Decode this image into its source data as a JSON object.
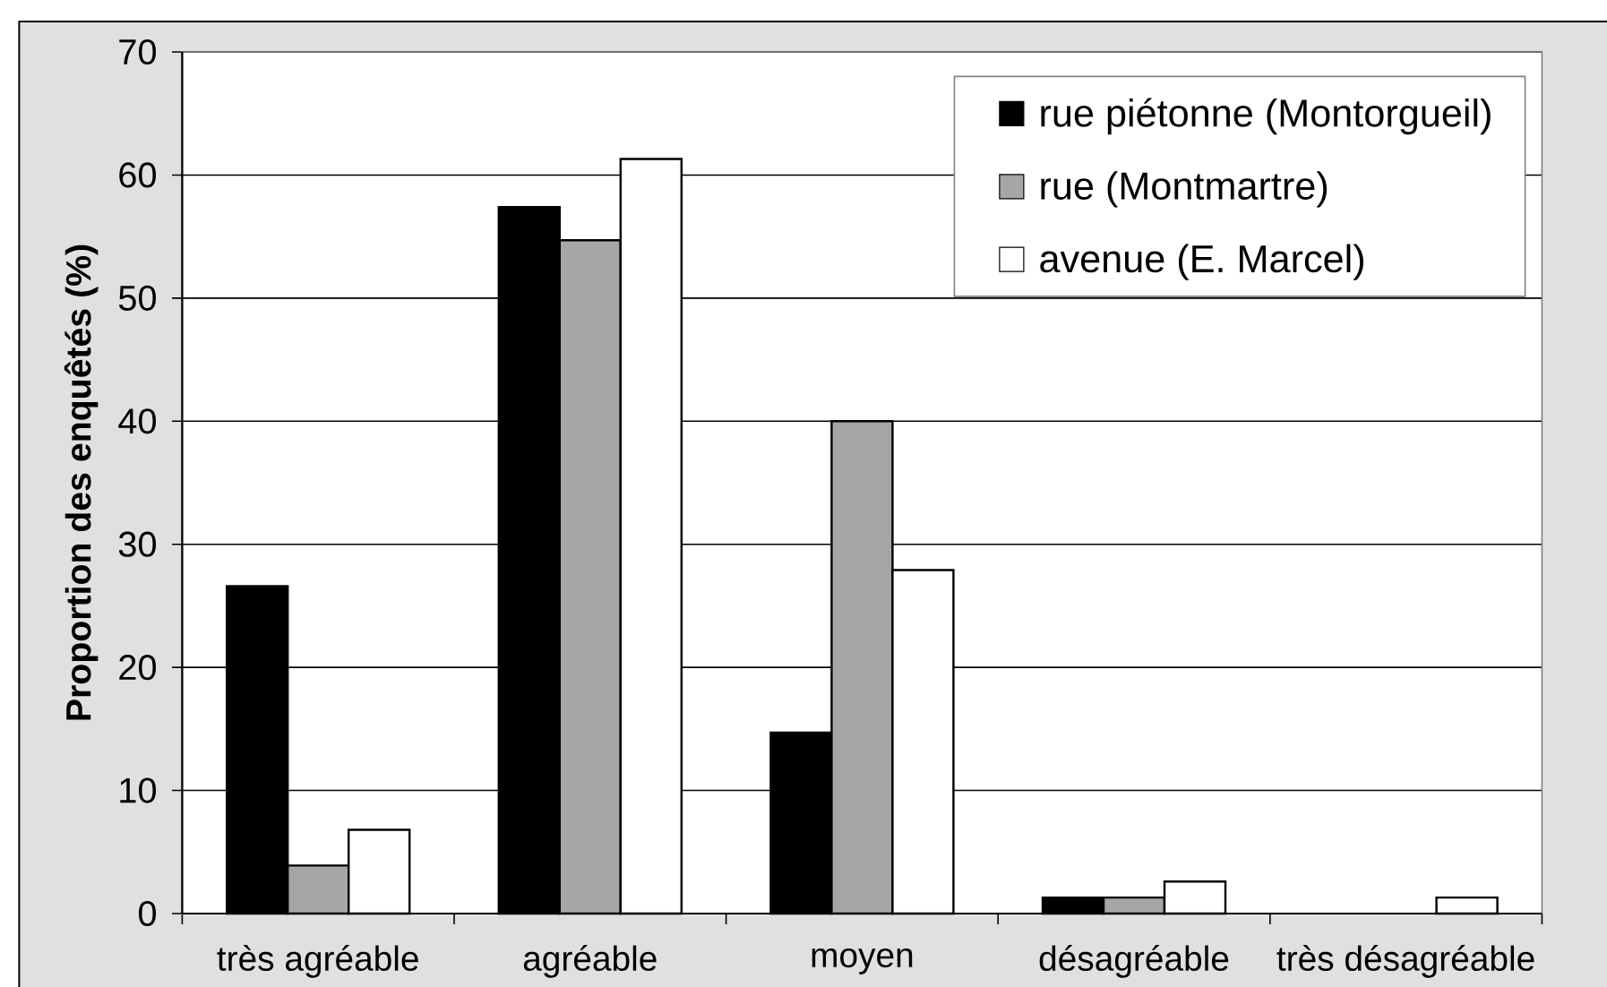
{
  "chart_data": {
    "type": "bar",
    "ylabel": "Proportion des enquêtés (%)",
    "categories": [
      "très agréable",
      "agréable",
      "moyen",
      "désagréable",
      "très désagréable"
    ],
    "series": [
      {
        "name": "rue piétonne (Montorgueil)",
        "color": "#000000",
        "values": [
          26.6,
          57.4,
          14.7,
          1.3,
          0
        ]
      },
      {
        "name": "rue (Montmartre)",
        "color": "#a6a6a6",
        "values": [
          3.9,
          54.7,
          40.0,
          1.3,
          0
        ]
      },
      {
        "name": "avenue (E. Marcel)",
        "color": "#ffffff",
        "values": [
          6.8,
          61.3,
          27.9,
          2.6,
          1.3
        ]
      }
    ],
    "ylim": [
      0,
      70
    ],
    "yticks": [
      0,
      10,
      20,
      30,
      40,
      50,
      60,
      70
    ],
    "grid": "y",
    "legend": "top right"
  }
}
